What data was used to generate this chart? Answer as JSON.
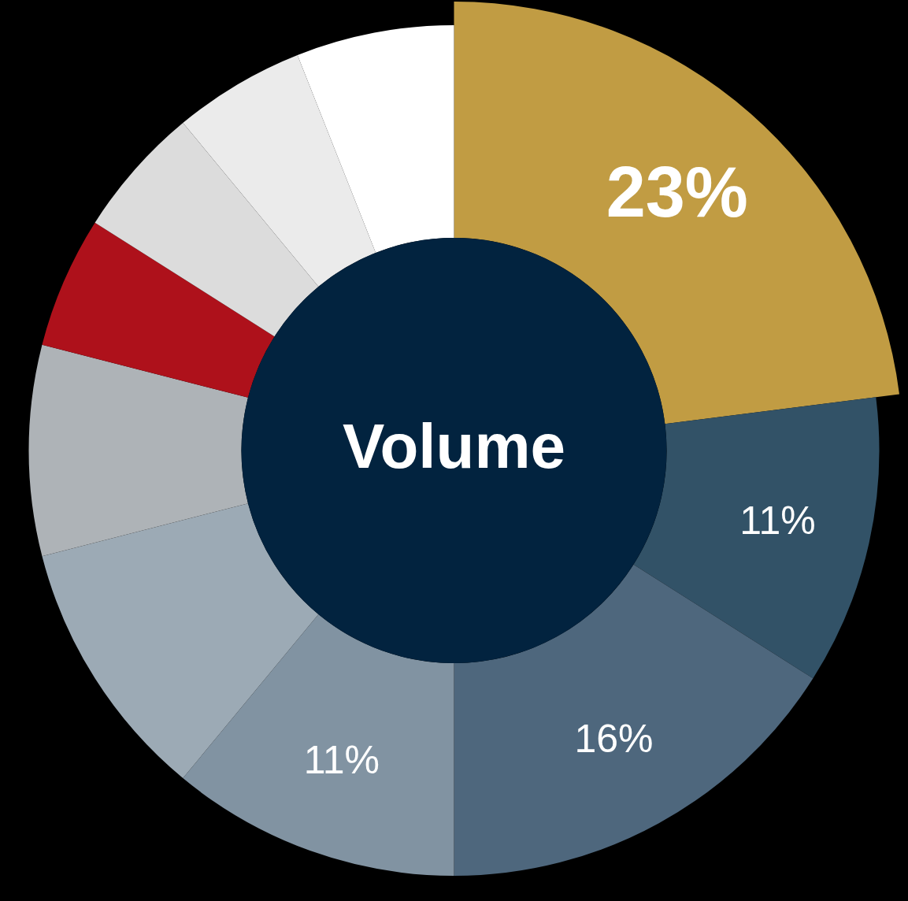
{
  "chart_data": {
    "type": "donut",
    "title": "Volume",
    "categories": [
      null,
      null,
      null,
      null,
      null,
      null,
      null,
      null,
      null,
      null
    ],
    "values": [
      23,
      11,
      16,
      11,
      10,
      8,
      5,
      5,
      5,
      6
    ],
    "colors": [
      "#c19c43",
      "#325267",
      "#4e677d",
      "#8193a2",
      "#9caab5",
      "#aeb3b7",
      "#ae111b",
      "#dcdcdc",
      "#ebebeb",
      "#ffffff"
    ],
    "value_labels": [
      "23%",
      "11%",
      "16%",
      "11%",
      null,
      null,
      null,
      null,
      null,
      null
    ],
    "legend": false
  }
}
